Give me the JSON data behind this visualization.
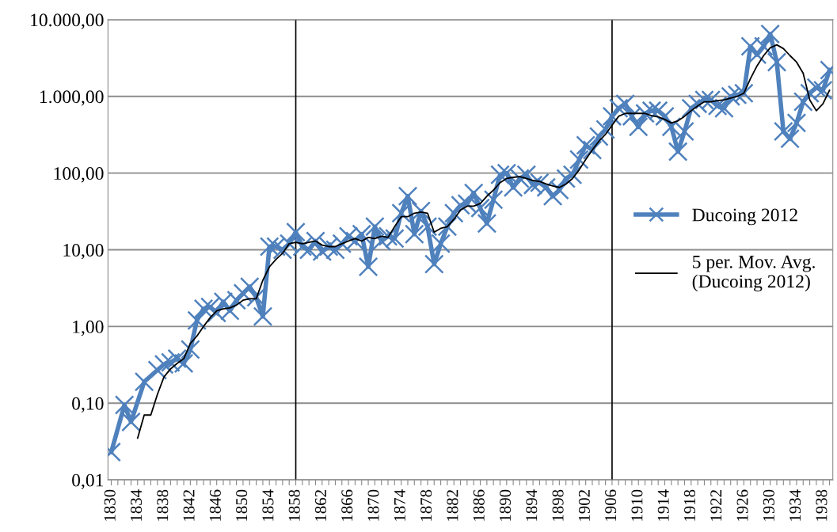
{
  "chart_data": {
    "type": "line",
    "log": "y",
    "grid": "y",
    "legend": "right",
    "x": [
      1830,
      1831,
      1832,
      1833,
      1834,
      1835,
      1836,
      1837,
      1838,
      1839,
      1840,
      1841,
      1842,
      1843,
      1844,
      1845,
      1846,
      1847,
      1848,
      1849,
      1850,
      1851,
      1852,
      1853,
      1854,
      1855,
      1856,
      1857,
      1858,
      1859,
      1860,
      1861,
      1862,
      1863,
      1864,
      1865,
      1866,
      1867,
      1868,
      1869,
      1870,
      1871,
      1872,
      1873,
      1874,
      1875,
      1876,
      1877,
      1878,
      1879,
      1880,
      1881,
      1882,
      1883,
      1884,
      1885,
      1886,
      1887,
      1888,
      1889,
      1890,
      1891,
      1892,
      1893,
      1894,
      1895,
      1896,
      1897,
      1898,
      1899,
      1900,
      1901,
      1902,
      1903,
      1904,
      1905,
      1906,
      1907,
      1908,
      1909,
      1910,
      1911,
      1912,
      1913,
      1914,
      1915,
      1916,
      1917,
      1918,
      1919,
      1920,
      1921,
      1922,
      1923,
      1924,
      1925,
      1926,
      1927,
      1928,
      1929,
      1930,
      1931,
      1932,
      1933,
      1934,
      1935,
      1936,
      1937,
      1938,
      1939
    ],
    "series": [
      {
        "name": "Ducoing 2012",
        "color": "#4f81bd",
        "marker": "cross",
        "values": [
          0.023,
          null,
          0.095,
          0.057,
          null,
          0.19,
          null,
          0.27,
          0.32,
          0.34,
          0.38,
          0.33,
          0.5,
          1.2,
          1.7,
          1.8,
          1.5,
          2.1,
          1.6,
          2.2,
          2.7,
          3.3,
          2.4,
          1.35,
          11,
          11,
          10,
          12,
          17,
          11,
          10,
          13,
          9.5,
          11,
          10,
          12,
          15,
          13,
          16,
          6,
          20,
          13,
          15,
          14,
          30,
          50,
          16,
          32,
          20,
          6.5,
          12,
          20,
          30,
          38,
          40,
          55,
          35,
          22,
          45,
          95,
          100,
          65,
          85,
          95,
          70,
          75,
          65,
          50,
          60,
          85,
          95,
          150,
          230,
          200,
          300,
          370,
          550,
          700,
          800,
          550,
          400,
          600,
          650,
          650,
          550,
          400,
          190,
          350,
          700,
          800,
          900,
          900,
          750,
          700,
          1000,
          1050,
          1100,
          4500,
          3500,
          4500,
          6500,
          2800,
          350,
          280,
          450,
          850,
          1100,
          1300,
          1200,
          2200
        ]
      },
      {
        "name": "5 per. Mov. Avg.\n(Ducoing 2012)",
        "color": "#000000",
        "marker": "none",
        "values": [
          null,
          null,
          null,
          null,
          0.035,
          0.07,
          0.07,
          0.13,
          0.22,
          0.28,
          0.33,
          0.38,
          0.6,
          0.75,
          1.0,
          1.3,
          1.6,
          1.7,
          1.75,
          1.9,
          2.2,
          2.3,
          2.3,
          4,
          6,
          7.5,
          9,
          12,
          12.5,
          12,
          12.5,
          13,
          11.5,
          11,
          11,
          12,
          13,
          14,
          13,
          14.5,
          14,
          15,
          14.5,
          20,
          27,
          27,
          30,
          31,
          30,
          17,
          19,
          20,
          25,
          33,
          37,
          37,
          40,
          50,
          60,
          75,
          85,
          88,
          90,
          85,
          80,
          78,
          72,
          68,
          65,
          72,
          85,
          110,
          150,
          200,
          260,
          320,
          420,
          550,
          600,
          600,
          600,
          600,
          560,
          540,
          500,
          450,
          480,
          550,
          650,
          750,
          850,
          850,
          880,
          900,
          950,
          1000,
          1100,
          1700,
          2500,
          3400,
          4300,
          4700,
          4200,
          3400,
          2800,
          2000,
          900,
          650,
          800,
          1200
        ]
      }
    ],
    "xlim": [
      1829.5,
      1939.5
    ],
    "xticks": [
      {
        "value": 1830,
        "label": "1830"
      },
      {
        "value": 1831,
        "label": null
      },
      {
        "value": 1832,
        "label": null
      },
      {
        "value": 1833,
        "label": null
      },
      {
        "value": 1834,
        "label": "1834"
      },
      {
        "value": 1835,
        "label": null
      },
      {
        "value": 1836,
        "label": null
      },
      {
        "value": 1837,
        "label": null
      },
      {
        "value": 1838,
        "label": "1838"
      },
      {
        "value": 1839,
        "label": null
      },
      {
        "value": 1840,
        "label": null
      },
      {
        "value": 1841,
        "label": null
      },
      {
        "value": 1842,
        "label": "1842"
      },
      {
        "value": 1843,
        "label": null
      },
      {
        "value": 1844,
        "label": null
      },
      {
        "value": 1845,
        "label": null
      },
      {
        "value": 1846,
        "label": "1846"
      },
      {
        "value": 1847,
        "label": null
      },
      {
        "value": 1848,
        "label": null
      },
      {
        "value": 1849,
        "label": null
      },
      {
        "value": 1850,
        "label": "1850"
      },
      {
        "value": 1851,
        "label": null
      },
      {
        "value": 1852,
        "label": null
      },
      {
        "value": 1853,
        "label": null
      },
      {
        "value": 1854,
        "label": "1854"
      },
      {
        "value": 1855,
        "label": null
      },
      {
        "value": 1856,
        "label": null
      },
      {
        "value": 1857,
        "label": null
      },
      {
        "value": 1858,
        "label": "1858"
      },
      {
        "value": 1859,
        "label": null
      },
      {
        "value": 1860,
        "label": null
      },
      {
        "value": 1861,
        "label": null
      },
      {
        "value": 1862,
        "label": "1862"
      },
      {
        "value": 1863,
        "label": null
      },
      {
        "value": 1864,
        "label": null
      },
      {
        "value": 1865,
        "label": null
      },
      {
        "value": 1866,
        "label": "1866"
      },
      {
        "value": 1867,
        "label": null
      },
      {
        "value": 1868,
        "label": null
      },
      {
        "value": 1869,
        "label": null
      },
      {
        "value": 1870,
        "label": "1870"
      },
      {
        "value": 1871,
        "label": null
      },
      {
        "value": 1872,
        "label": null
      },
      {
        "value": 1873,
        "label": null
      },
      {
        "value": 1874,
        "label": "1874"
      },
      {
        "value": 1875,
        "label": null
      },
      {
        "value": 1876,
        "label": null
      },
      {
        "value": 1877,
        "label": null
      },
      {
        "value": 1878,
        "label": "1878"
      },
      {
        "value": 1879,
        "label": null
      },
      {
        "value": 1880,
        "label": null
      },
      {
        "value": 1881,
        "label": null
      },
      {
        "value": 1882,
        "label": "1882"
      },
      {
        "value": 1883,
        "label": null
      },
      {
        "value": 1884,
        "label": null
      },
      {
        "value": 1885,
        "label": null
      },
      {
        "value": 1886,
        "label": "1886"
      },
      {
        "value": 1887,
        "label": null
      },
      {
        "value": 1888,
        "label": null
      },
      {
        "value": 1889,
        "label": null
      },
      {
        "value": 1890,
        "label": "1890"
      },
      {
        "value": 1891,
        "label": null
      },
      {
        "value": 1892,
        "label": null
      },
      {
        "value": 1893,
        "label": null
      },
      {
        "value": 1894,
        "label": "1894"
      },
      {
        "value": 1895,
        "label": null
      },
      {
        "value": 1896,
        "label": null
      },
      {
        "value": 1897,
        "label": null
      },
      {
        "value": 1898,
        "label": "1898"
      },
      {
        "value": 1899,
        "label": null
      },
      {
        "value": 1900,
        "label": null
      },
      {
        "value": 1901,
        "label": null
      },
      {
        "value": 1902,
        "label": "1902"
      },
      {
        "value": 1903,
        "label": null
      },
      {
        "value": 1904,
        "label": null
      },
      {
        "value": 1905,
        "label": null
      },
      {
        "value": 1906,
        "label": "1906"
      },
      {
        "value": 1907,
        "label": null
      },
      {
        "value": 1908,
        "label": null
      },
      {
        "value": 1909,
        "label": null
      },
      {
        "value": 1910,
        "label": "1910"
      },
      {
        "value": 1911,
        "label": null
      },
      {
        "value": 1912,
        "label": null
      },
      {
        "value": 1913,
        "label": null
      },
      {
        "value": 1914,
        "label": "1914"
      },
      {
        "value": 1915,
        "label": null
      },
      {
        "value": 1916,
        "label": null
      },
      {
        "value": 1917,
        "label": null
      },
      {
        "value": 1918,
        "label": "1918"
      },
      {
        "value": 1919,
        "label": null
      },
      {
        "value": 1920,
        "label": null
      },
      {
        "value": 1921,
        "label": null
      },
      {
        "value": 1922,
        "label": "1922"
      },
      {
        "value": 1923,
        "label": null
      },
      {
        "value": 1924,
        "label": null
      },
      {
        "value": 1925,
        "label": null
      },
      {
        "value": 1926,
        "label": "1926"
      },
      {
        "value": 1927,
        "label": null
      },
      {
        "value": 1928,
        "label": null
      },
      {
        "value": 1929,
        "label": null
      },
      {
        "value": 1930,
        "label": "1930"
      },
      {
        "value": 1931,
        "label": null
      },
      {
        "value": 1932,
        "label": null
      },
      {
        "value": 1933,
        "label": null
      },
      {
        "value": 1934,
        "label": "1934"
      },
      {
        "value": 1935,
        "label": null
      },
      {
        "value": 1936,
        "label": null
      },
      {
        "value": 1937,
        "label": null
      },
      {
        "value": 1938,
        "label": "1938"
      },
      {
        "value": 1939,
        "label": null
      }
    ],
    "ylim": [
      0.01,
      10000
    ],
    "yticks": [
      {
        "value": 0.01,
        "label": "0,01"
      },
      {
        "value": 0.1,
        "label": "0,10"
      },
      {
        "value": 1,
        "label": "1,00"
      },
      {
        "value": 10,
        "label": "10,00"
      },
      {
        "value": 100,
        "label": "100,00"
      },
      {
        "value": 1000,
        "label": "1.000,00"
      },
      {
        "value": 10000,
        "label": "10.000,00"
      }
    ],
    "ref_lines": [
      {
        "axis": "x",
        "value": 1858,
        "label": null,
        "color": "#000000"
      },
      {
        "axis": "x",
        "value": 1906,
        "label": null,
        "color": "#000000"
      }
    ]
  }
}
